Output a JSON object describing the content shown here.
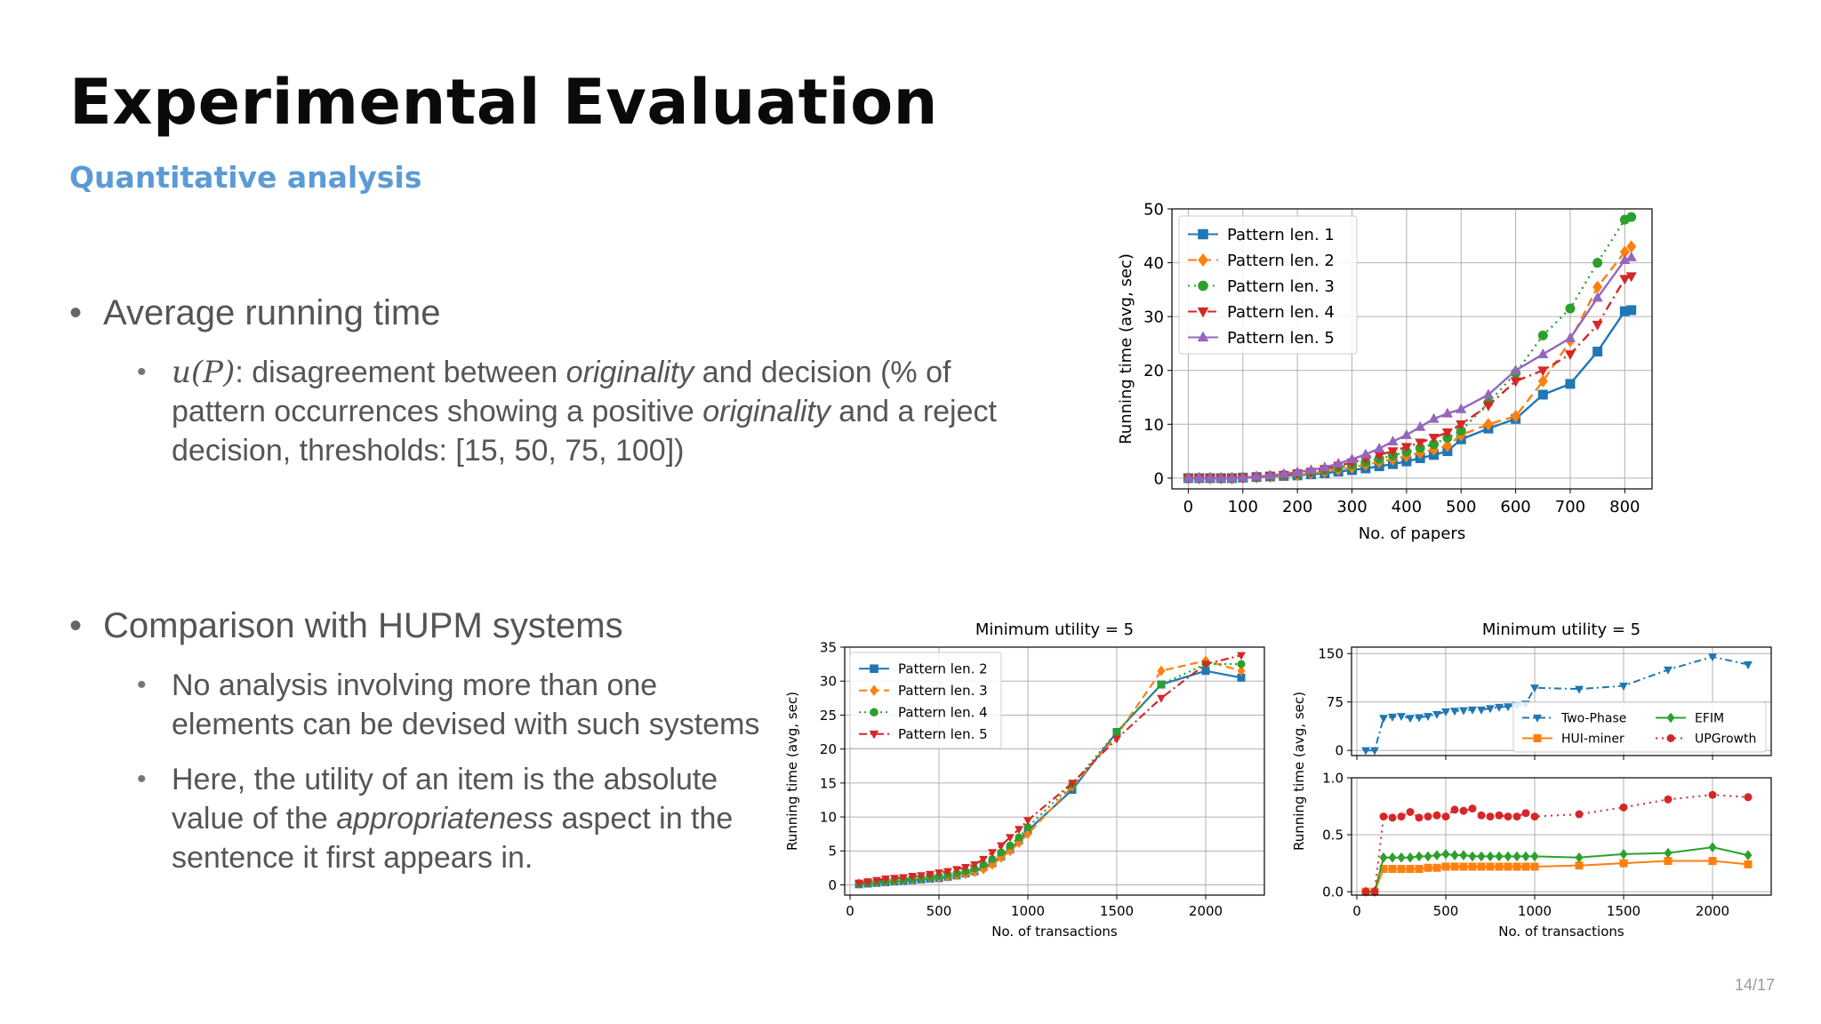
{
  "slide": {
    "title": "Experimental Evaluation",
    "subtitle": "Quantitative analysis",
    "page_number": "14/17"
  },
  "bullets": {
    "b1": {
      "label": "Average running time"
    },
    "b1_sub1": {
      "math": "u(P)",
      "t1": ": disagreement between ",
      "e1": "originality",
      "t2": " and decision (% of pattern occurrences showing a positive ",
      "e2": "originality",
      "t3": " and a reject decision, thresholds: [15, 50, 75, 100])"
    },
    "b2": {
      "label": "Comparison with HUPM systems"
    },
    "b2_sub1": {
      "text": "No analysis involving more than one elements can be devised with such systems"
    },
    "b2_sub2": {
      "t1": "Here, the utility of an item is the absolute value of the ",
      "e1": "appropriateness",
      "t2": " aspect in the sentence it first appears in."
    }
  },
  "colors": {
    "blue": "#1f77b4",
    "orange": "#ff7f0e",
    "green": "#2ca02c",
    "red": "#d62728",
    "purple": "#9467bd",
    "grid": "#b0b0b0"
  },
  "chart_data": [
    {
      "id": "c1",
      "type": "line",
      "title": "",
      "xlabel": "No. of papers",
      "ylabel": "Running time (avg, sec)",
      "xlim": [
        -30,
        850
      ],
      "ylim": [
        -2,
        50
      ],
      "xticks": [
        0,
        100,
        200,
        300,
        400,
        500,
        600,
        700,
        800
      ],
      "yticks": [
        0,
        10,
        20,
        30,
        40,
        50
      ],
      "grid": true,
      "legend": "top-left",
      "x": [
        0,
        20,
        40,
        60,
        80,
        100,
        125,
        150,
        175,
        200,
        225,
        250,
        275,
        300,
        325,
        350,
        375,
        400,
        425,
        450,
        475,
        500,
        550,
        600,
        650,
        700,
        750,
        800,
        812
      ],
      "series": [
        {
          "name": "Pattern len. 1",
          "color": "#1f77b4",
          "marker": "square",
          "dash": "none",
          "values": [
            0,
            0,
            0,
            0,
            0,
            0.1,
            0.2,
            0.3,
            0.4,
            0.5,
            0.7,
            0.9,
            1.2,
            1.5,
            1.8,
            2.2,
            2.6,
            3.1,
            3.7,
            4.3,
            5.0,
            7.2,
            9.2,
            11.0,
            15.5,
            17.5,
            23.5,
            31.0,
            31.2
          ]
        },
        {
          "name": "Pattern len. 2",
          "color": "#ff7f0e",
          "marker": "diamond",
          "dash": "10,6",
          "values": [
            0,
            0,
            0,
            0,
            0,
            0.1,
            0.2,
            0.3,
            0.5,
            0.6,
            0.9,
            1.2,
            1.6,
            2.0,
            2.5,
            3.0,
            3.5,
            4.1,
            4.7,
            5.3,
            6.0,
            8.0,
            10.0,
            11.5,
            18.0,
            25.5,
            35.5,
            42.0,
            43.0
          ]
        },
        {
          "name": "Pattern len. 3",
          "color": "#2ca02c",
          "marker": "circle",
          "dash": "2,5",
          "values": [
            0,
            0,
            0,
            0,
            0,
            0.1,
            0.2,
            0.4,
            0.6,
            0.8,
            1.1,
            1.5,
            2.0,
            2.5,
            3.0,
            3.6,
            4.2,
            4.9,
            5.6,
            6.3,
            7.5,
            8.8,
            14.0,
            19.5,
            26.5,
            31.5,
            40.0,
            48.0,
            48.5
          ]
        },
        {
          "name": "Pattern len. 4",
          "color": "#d62728",
          "marker": "triangle-down",
          "dash": "10,5,2,5",
          "values": [
            0,
            0,
            0,
            0,
            0,
            0.1,
            0.2,
            0.4,
            0.6,
            0.9,
            1.2,
            1.7,
            2.3,
            2.9,
            3.6,
            4.3,
            5.0,
            5.8,
            6.6,
            7.5,
            8.5,
            10.0,
            13.5,
            18.0,
            20.0,
            23.0,
            28.5,
            37.0,
            37.5
          ]
        },
        {
          "name": "Pattern len. 5",
          "color": "#9467bd",
          "marker": "triangle-up",
          "dash": "none",
          "values": [
            0,
            0,
            0,
            0,
            0,
            0.1,
            0.3,
            0.5,
            0.8,
            1.1,
            1.5,
            2.0,
            2.7,
            3.5,
            4.4,
            5.5,
            6.8,
            8.0,
            9.5,
            11.0,
            12.0,
            12.8,
            15.5,
            20.0,
            23.0,
            26.0,
            33.5,
            40.5,
            41.0
          ]
        }
      ]
    },
    {
      "id": "c2",
      "type": "line",
      "title": "Minimum utility = 5",
      "xlabel": "No. of transactions",
      "ylabel": "Running time (avg, sec)",
      "xlim": [
        -30,
        2330
      ],
      "ylim": [
        -1.5,
        35
      ],
      "xticks": [
        0,
        500,
        1000,
        1500,
        2000
      ],
      "yticks": [
        0,
        5,
        10,
        15,
        20,
        25,
        30,
        35
      ],
      "grid": true,
      "legend": "top-left",
      "x": [
        50,
        100,
        150,
        200,
        250,
        300,
        350,
        400,
        450,
        500,
        550,
        600,
        650,
        700,
        750,
        800,
        850,
        900,
        950,
        1000,
        1250,
        1500,
        1750,
        2000,
        2200
      ],
      "series": [
        {
          "name": "Pattern len. 2",
          "color": "#1f77b4",
          "marker": "square",
          "dash": "none",
          "values": [
            0.1,
            0.2,
            0.3,
            0.4,
            0.5,
            0.6,
            0.7,
            0.8,
            0.9,
            1.0,
            1.2,
            1.4,
            1.7,
            2.0,
            2.6,
            3.2,
            4.2,
            5.2,
            6.5,
            8.0,
            14.0,
            22.5,
            29.5,
            31.5,
            30.5
          ]
        },
        {
          "name": "Pattern len. 3",
          "color": "#ff7f0e",
          "marker": "diamond",
          "dash": "9,5",
          "values": [
            0.2,
            0.3,
            0.4,
            0.5,
            0.6,
            0.7,
            0.8,
            0.9,
            1.0,
            1.1,
            1.2,
            1.4,
            1.6,
            1.9,
            2.3,
            3.0,
            4.0,
            5.0,
            6.2,
            7.5,
            14.5,
            22.0,
            31.5,
            33.0,
            31.5
          ]
        },
        {
          "name": "Pattern len. 4",
          "color": "#2ca02c",
          "marker": "circle",
          "dash": "2,4",
          "values": [
            0.2,
            0.3,
            0.5,
            0.6,
            0.7,
            0.8,
            0.9,
            1.0,
            1.1,
            1.3,
            1.5,
            1.7,
            2.0,
            2.4,
            3.0,
            3.8,
            4.8,
            5.8,
            7.0,
            8.5,
            14.8,
            22.5,
            29.5,
            32.5,
            32.5
          ]
        },
        {
          "name": "Pattern len. 5",
          "color": "#d62728",
          "marker": "triangle-down",
          "dash": "9,4,2,4",
          "values": [
            0.3,
            0.5,
            0.7,
            0.9,
            1.0,
            1.1,
            1.3,
            1.4,
            1.6,
            1.8,
            2.0,
            2.3,
            2.6,
            3.0,
            3.8,
            4.8,
            5.8,
            7.0,
            8.2,
            9.5,
            15.0,
            21.5,
            27.5,
            32.5,
            33.8
          ]
        }
      ]
    },
    {
      "id": "c3",
      "type": "line",
      "title": "Minimum utility = 5",
      "xlabel": "No. of transactions",
      "ylabel": "Running time (avg, sec)",
      "xlim": [
        -30,
        2330
      ],
      "grid": true,
      "legend": "bottom-right (upper panel)",
      "upper_panel": {
        "ylim": [
          -8,
          160
        ],
        "yticks": [
          0,
          75,
          150
        ]
      },
      "lower_panel": {
        "ylim": [
          -0.03,
          1.0
        ],
        "yticks": [
          0.0,
          0.5,
          1.0
        ]
      },
      "xticks": [
        0,
        500,
        1000,
        1500,
        2000
      ],
      "x": [
        50,
        100,
        150,
        200,
        250,
        300,
        350,
        400,
        450,
        500,
        550,
        600,
        650,
        700,
        750,
        800,
        850,
        900,
        950,
        1000,
        1250,
        1500,
        1750,
        2000,
        2200
      ],
      "series": [
        {
          "name": "Two-Phase",
          "panel": "upper",
          "color": "#1f77b4",
          "marker": "triangle-down",
          "dash": "8,4,2,4",
          "values": [
            0,
            0,
            50,
            52,
            53,
            50,
            51,
            53,
            56,
            60,
            61,
            62,
            63,
            63,
            65,
            67,
            68,
            70,
            72,
            97,
            95,
            100,
            125,
            145,
            133
          ]
        },
        {
          "name": "HUI-miner",
          "panel": "lower",
          "color": "#ff7f0e",
          "marker": "square",
          "dash": "none",
          "values": [
            0,
            0,
            0.2,
            0.2,
            0.2,
            0.2,
            0.2,
            0.21,
            0.21,
            0.22,
            0.22,
            0.22,
            0.22,
            0.22,
            0.22,
            0.22,
            0.22,
            0.22,
            0.22,
            0.22,
            0.23,
            0.25,
            0.27,
            0.27,
            0.24
          ]
        },
        {
          "name": "EFIM",
          "panel": "lower",
          "color": "#2ca02c",
          "marker": "diamond",
          "dash": "none",
          "values": [
            0,
            0,
            0.3,
            0.3,
            0.3,
            0.3,
            0.31,
            0.31,
            0.32,
            0.33,
            0.32,
            0.32,
            0.31,
            0.31,
            0.31,
            0.31,
            0.31,
            0.31,
            0.31,
            0.31,
            0.3,
            0.33,
            0.34,
            0.39,
            0.32
          ]
        },
        {
          "name": "UPGrowth",
          "panel": "lower",
          "color": "#d62728",
          "marker": "circle",
          "dash": "2,5",
          "values": [
            0,
            0,
            0.66,
            0.65,
            0.66,
            0.7,
            0.65,
            0.66,
            0.67,
            0.66,
            0.72,
            0.71,
            0.73,
            0.67,
            0.66,
            0.67,
            0.66,
            0.66,
            0.69,
            0.66,
            0.68,
            0.74,
            0.81,
            0.85,
            0.83
          ]
        }
      ]
    }
  ]
}
